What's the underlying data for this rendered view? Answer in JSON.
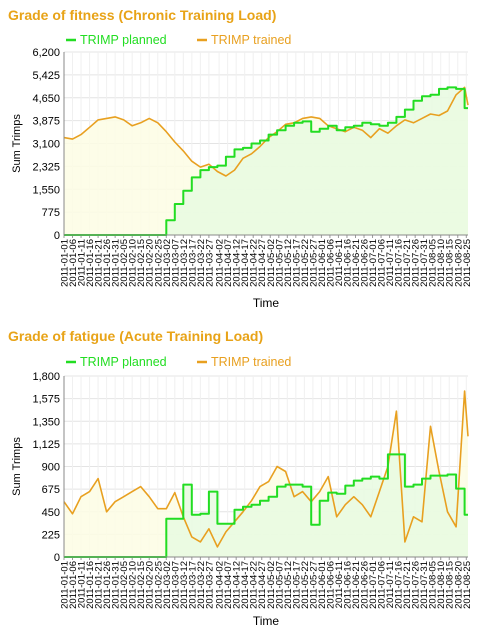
{
  "colors": {
    "planned": "#22dd22",
    "trained": "#e8a020",
    "planned_fill": "#e8fae0",
    "trained_fill": "#fdfde4",
    "title": "#e8a317",
    "grid": "#e4e4e4"
  },
  "chart_data": [
    {
      "type": "area",
      "title": "Grade of fitness (Chronic Training Load)",
      "xlabel": "Time",
      "ylabel": "Sum Trimps",
      "ylim": [
        0,
        6200
      ],
      "yticks": [
        "0",
        "775",
        "1,550",
        "2,325",
        "3,100",
        "3,875",
        "4,650",
        "5,425",
        "6,200"
      ],
      "legend": "top-left",
      "grid": true,
      "x": [
        "2011-01-01",
        "2011-01-06",
        "2011-01-11",
        "2011-01-16",
        "2011-01-21",
        "2011-01-26",
        "2011-01-31",
        "2011-02-05",
        "2011-02-10",
        "2011-02-15",
        "2011-02-20",
        "2011-02-25",
        "2011-03-02",
        "2011-03-07",
        "2011-03-12",
        "2011-03-17",
        "2011-03-22",
        "2011-03-27",
        "2011-04-01",
        "2011-04-06",
        "2011-04-11",
        "2011-04-16",
        "2011-04-21",
        "2011-04-26",
        "2011-05-01",
        "2011-05-06",
        "2011-05-11",
        "2011-05-16",
        "2011-05-21",
        "2011-05-26",
        "2011-05-31",
        "2011-06-05",
        "2011-06-10",
        "2011-06-15",
        "2011-06-20",
        "2011-06-25",
        "2011-06-30",
        "2011-07-05",
        "2011-07-10",
        "2011-07-15",
        "2011-07-20",
        "2011-07-25",
        "2011-07-30",
        "2011-08-04",
        "2011-08-09",
        "2011-08-14",
        "2011-08-19",
        "2011-08-24",
        "2011-08-26"
      ],
      "tick_labels": [
        "2011-01-01",
        "2011-01-06",
        "2011-01-11",
        "2011-01-16",
        "2011-01-21",
        "2011-01-26",
        "2011-01-31",
        "2011-02-05",
        "2011-02-10",
        "2011-02-15",
        "2011-02-20",
        "2011-02-25",
        "2011-03-02",
        "2011-03-07",
        "2011-03-12",
        "2011-03-17",
        "2011-03-22",
        "2011-03-27",
        "2011-04-02",
        "2011-04-07",
        "2011-04-12",
        "2011-04-17",
        "2011-04-22",
        "2011-04-27",
        "2011-05-02",
        "2011-05-07",
        "2011-05-12",
        "2011-05-17",
        "2011-05-22",
        "2011-05-27",
        "2011-06-01",
        "2011-06-06",
        "2011-06-11",
        "2011-06-16",
        "2011-06-21",
        "2011-06-26",
        "2011-07-01",
        "2011-07-06",
        "2011-07-11",
        "2011-07-16",
        "2011-07-21",
        "2011-07-26",
        "2011-07-31",
        "2011-08-05",
        "2011-08-10",
        "2011-08-15",
        "2011-08-20",
        "2011-08-25"
      ],
      "series": [
        {
          "name": "TRIMP planned",
          "values": [
            0,
            0,
            0,
            0,
            0,
            0,
            0,
            0,
            0,
            0,
            0,
            0,
            500,
            1050,
            1500,
            1950,
            2200,
            2300,
            2350,
            2650,
            2900,
            2950,
            3100,
            3200,
            3400,
            3550,
            3700,
            3800,
            3850,
            3500,
            3600,
            3700,
            3550,
            3650,
            3700,
            3800,
            3750,
            3700,
            3800,
            4000,
            4250,
            4550,
            4700,
            4750,
            4950,
            5000,
            4950,
            4300,
            4300
          ]
        },
        {
          "name": "TRIMP trained",
          "values": [
            3300,
            3250,
            3400,
            3650,
            3900,
            3950,
            4000,
            3900,
            3700,
            3800,
            3950,
            3800,
            3500,
            3150,
            2850,
            2500,
            2300,
            2400,
            2150,
            2000,
            2200,
            2600,
            2750,
            3000,
            3300,
            3500,
            3750,
            3800,
            3950,
            4000,
            3950,
            3700,
            3600,
            3500,
            3650,
            3550,
            3300,
            3600,
            3450,
            3700,
            3900,
            3800,
            3950,
            4100,
            4050,
            4200,
            4750,
            5000,
            4400
          ]
        }
      ]
    },
    {
      "type": "area",
      "title": "Grade of fatigue (Acute Training Load)",
      "xlabel": "Time",
      "ylabel": "Sum Trimps",
      "ylim": [
        0,
        1800
      ],
      "yticks": [
        "0",
        "225",
        "450",
        "675",
        "900",
        "1,125",
        "1,350",
        "1,575",
        "1,800"
      ],
      "legend": "top-left",
      "grid": true,
      "x": [
        "2011-01-01",
        "2011-01-06",
        "2011-01-11",
        "2011-01-16",
        "2011-01-21",
        "2011-01-26",
        "2011-01-31",
        "2011-02-05",
        "2011-02-10",
        "2011-02-15",
        "2011-02-20",
        "2011-02-25",
        "2011-03-02",
        "2011-03-07",
        "2011-03-12",
        "2011-03-17",
        "2011-03-22",
        "2011-03-27",
        "2011-04-01",
        "2011-04-06",
        "2011-04-11",
        "2011-04-16",
        "2011-04-21",
        "2011-04-26",
        "2011-05-01",
        "2011-05-06",
        "2011-05-11",
        "2011-05-16",
        "2011-05-21",
        "2011-05-26",
        "2011-05-31",
        "2011-06-05",
        "2011-06-10",
        "2011-06-15",
        "2011-06-20",
        "2011-06-25",
        "2011-06-30",
        "2011-07-05",
        "2011-07-10",
        "2011-07-15",
        "2011-07-20",
        "2011-07-25",
        "2011-07-30",
        "2011-08-04",
        "2011-08-09",
        "2011-08-14",
        "2011-08-19",
        "2011-08-24",
        "2011-08-26"
      ],
      "tick_labels": [
        "2011-01-01",
        "2011-01-06",
        "2011-01-11",
        "2011-01-16",
        "2011-01-21",
        "2011-01-26",
        "2011-01-31",
        "2011-02-05",
        "2011-02-10",
        "2011-02-15",
        "2011-02-20",
        "2011-02-25",
        "2011-03-02",
        "2011-03-07",
        "2011-03-12",
        "2011-03-17",
        "2011-03-22",
        "2011-03-27",
        "2011-04-02",
        "2011-04-07",
        "2011-04-12",
        "2011-04-17",
        "2011-04-22",
        "2011-04-27",
        "2011-05-02",
        "2011-05-07",
        "2011-05-12",
        "2011-05-17",
        "2011-05-22",
        "2011-05-27",
        "2011-06-01",
        "2011-06-06",
        "2011-06-11",
        "2011-06-16",
        "2011-06-21",
        "2011-06-26",
        "2011-07-01",
        "2011-07-06",
        "2011-07-11",
        "2011-07-16",
        "2011-07-21",
        "2011-07-26",
        "2011-07-31",
        "2011-08-05",
        "2011-08-10",
        "2011-08-15",
        "2011-08-20",
        "2011-08-25"
      ],
      "series": [
        {
          "name": "TRIMP planned",
          "values": [
            0,
            0,
            0,
            0,
            0,
            0,
            0,
            0,
            0,
            0,
            0,
            0,
            380,
            380,
            720,
            420,
            430,
            650,
            330,
            330,
            470,
            500,
            520,
            560,
            600,
            700,
            720,
            720,
            700,
            320,
            560,
            640,
            630,
            710,
            760,
            780,
            800,
            780,
            1020,
            1020,
            700,
            720,
            780,
            810,
            810,
            820,
            680,
            420,
            420
          ]
        },
        {
          "name": "TRIMP trained",
          "values": [
            550,
            430,
            600,
            650,
            780,
            450,
            550,
            600,
            650,
            700,
            600,
            480,
            480,
            640,
            400,
            200,
            150,
            280,
            100,
            250,
            350,
            450,
            560,
            700,
            750,
            900,
            850,
            600,
            650,
            550,
            650,
            800,
            400,
            520,
            600,
            520,
            400,
            650,
            900,
            1450,
            150,
            400,
            350,
            1300,
            850,
            450,
            300,
            1650,
            1200
          ]
        }
      ]
    }
  ]
}
